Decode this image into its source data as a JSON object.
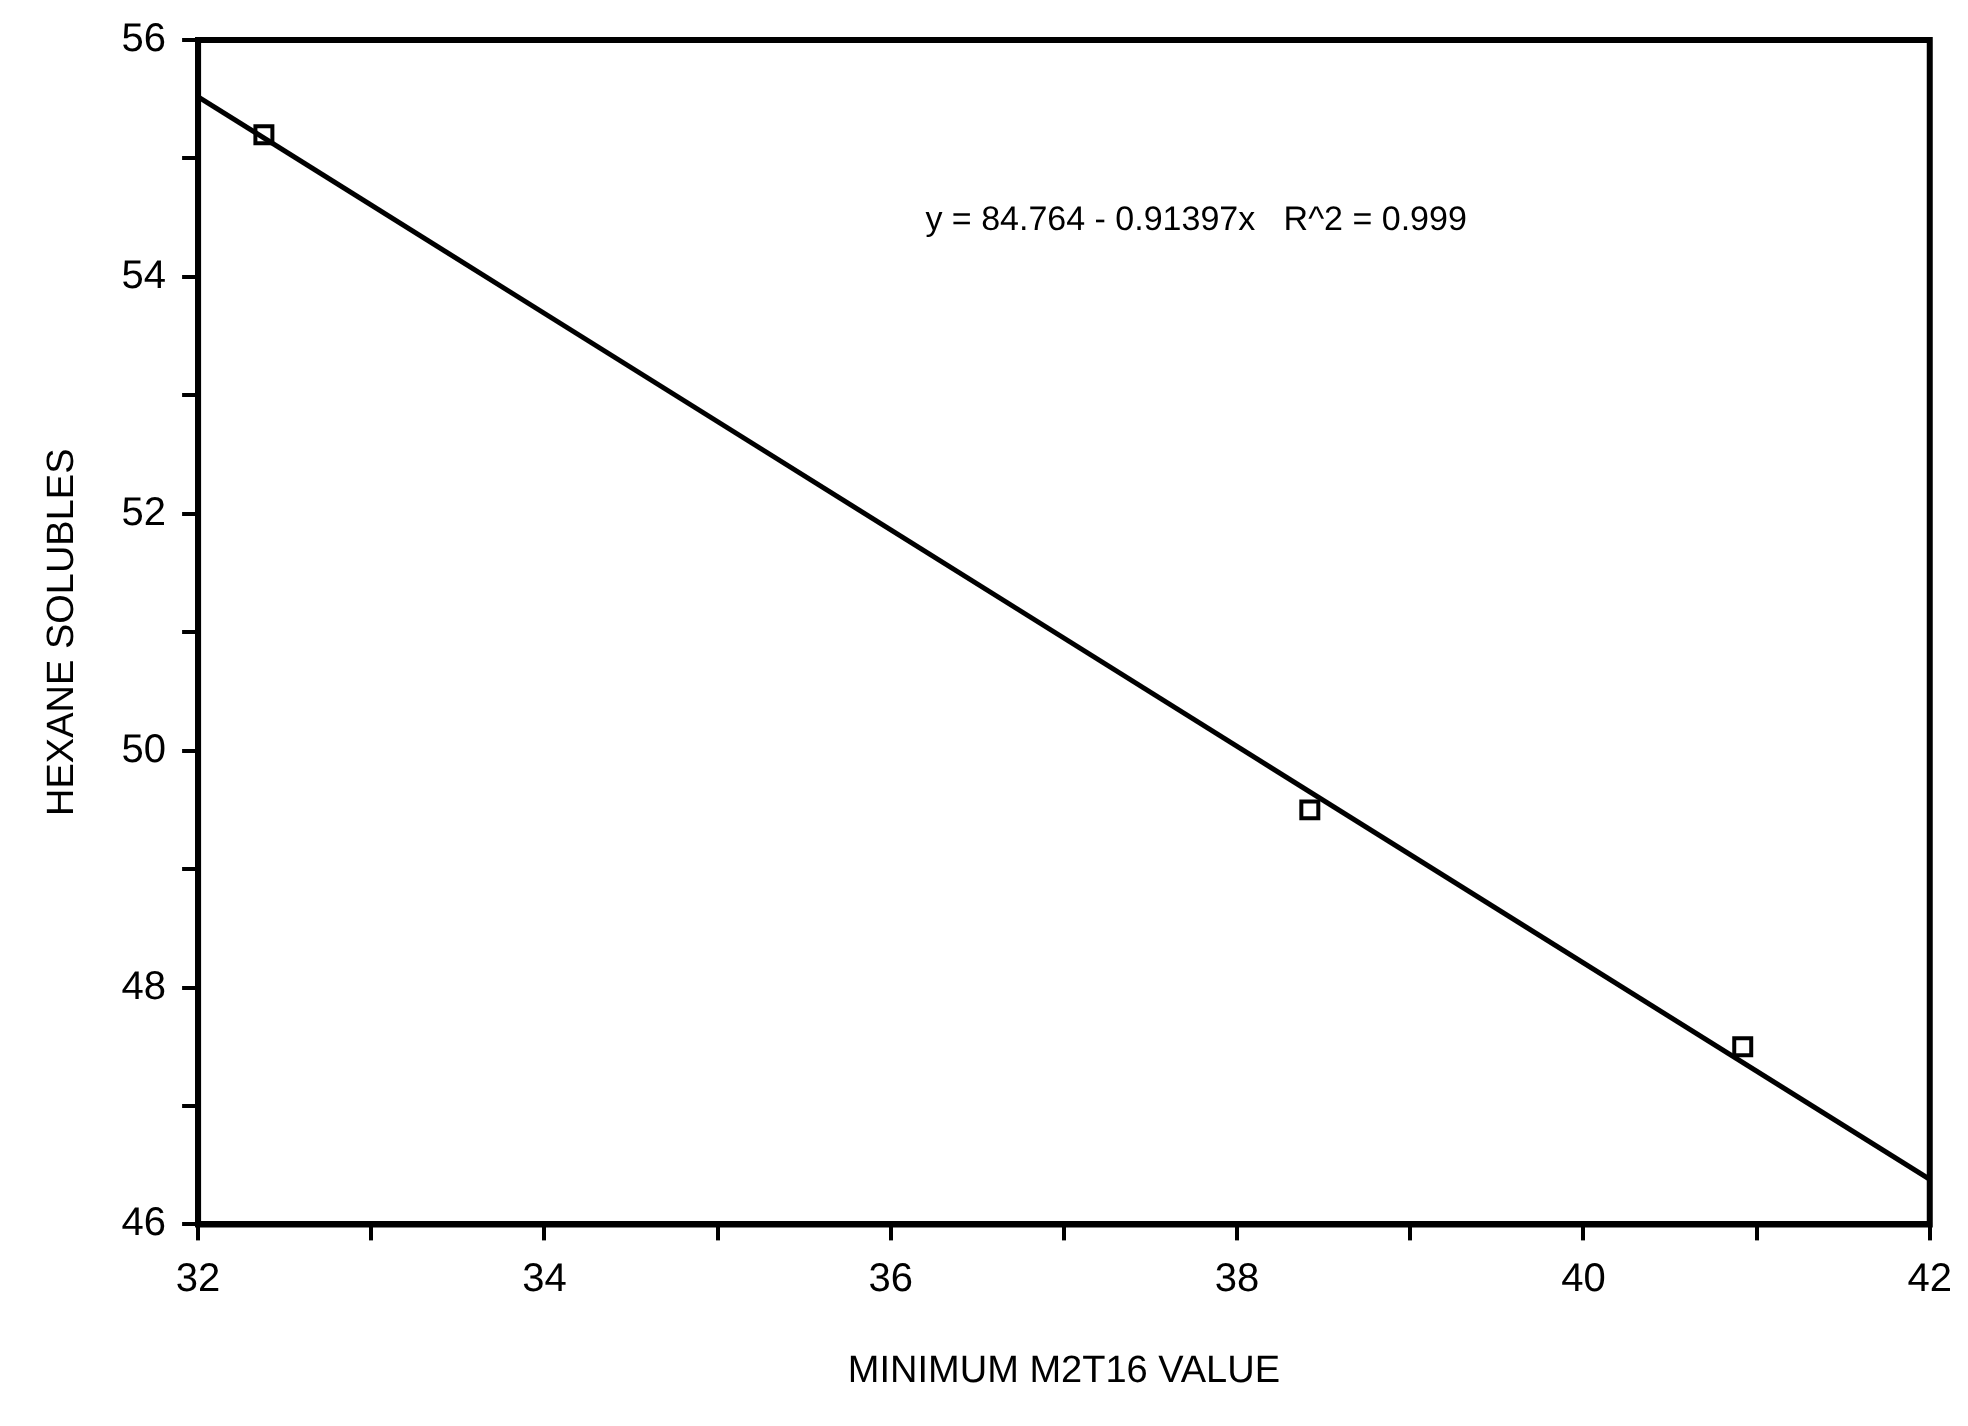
{
  "chart_data": {
    "type": "scatter",
    "xlabel": "MINIMUM M2T16 VALUE",
    "ylabel": "HEXANE SOLUBLES",
    "annotations": [
      "y = 84.764 - 0.91397x   R^2 = 0.999"
    ],
    "xlim": [
      32,
      42
    ],
    "xticks": [
      32,
      {
        "value": 33,
        "label": null
      },
      34,
      {
        "value": 35,
        "label": null
      },
      36,
      {
        "value": 37,
        "label": null
      },
      38,
      {
        "value": 39,
        "label": null
      },
      40,
      {
        "value": 41,
        "label": null
      },
      42
    ],
    "ylim": [
      46,
      56
    ],
    "yticks": [
      46,
      {
        "value": 47,
        "label": null
      },
      48,
      {
        "value": 49,
        "label": null
      },
      50,
      {
        "value": 51,
        "label": null
      },
      52,
      {
        "value": 53,
        "label": null
      },
      54,
      {
        "value": 55,
        "label": null
      },
      56
    ],
    "grid": false,
    "legend": false,
    "marker": "square",
    "series": [
      {
        "type": "scatter",
        "color": "#000000",
        "x": [
          32.38,
          38.42,
          40.92
        ],
        "values": [
          55.2,
          49.5,
          47.5
        ]
      },
      {
        "type": "line",
        "color": "#000000",
        "marker": "none",
        "line_style": "solid",
        "x": [
          32,
          42
        ],
        "values": [
          55.52,
          46.38
        ]
      }
    ]
  }
}
